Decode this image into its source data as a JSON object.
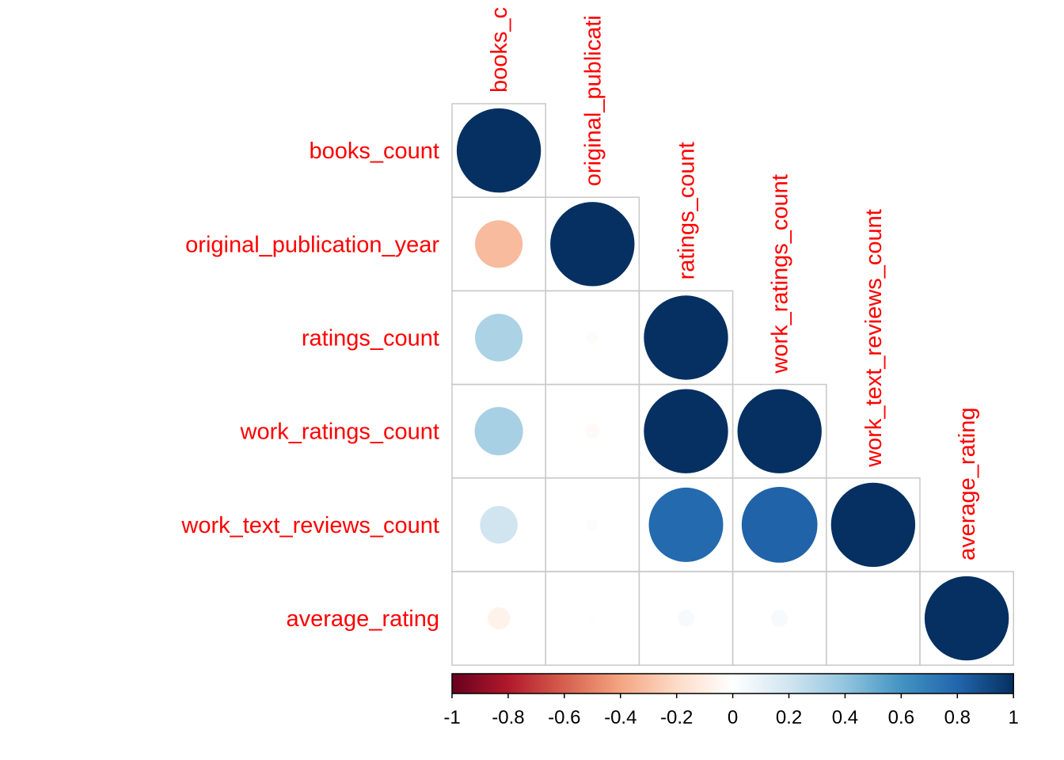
{
  "chart_data": {
    "type": "heatmap",
    "subtype": "correlation-circles-lower-triangle",
    "variables": [
      "books_count",
      "original_publication_year",
      "ratings_count",
      "work_ratings_count",
      "work_text_reviews_count",
      "average_rating"
    ],
    "column_labels": [
      "books_c",
      "original_publicati",
      "ratings_count",
      "work_ratings_count",
      "work_text_reviews_count",
      "average_rating"
    ],
    "matrix": [
      [
        1.0,
        null,
        null,
        null,
        null,
        null
      ],
      [
        -0.32,
        1.0,
        null,
        null,
        null,
        null
      ],
      [
        0.32,
        -0.02,
        1.0,
        null,
        null,
        null
      ],
      [
        0.33,
        -0.03,
        1.0,
        1.0,
        null,
        null
      ],
      [
        0.2,
        0.02,
        0.78,
        0.81,
        1.0,
        null
      ],
      [
        -0.07,
        0.01,
        0.04,
        0.04,
        0.0,
        1.0
      ]
    ],
    "color_scale": {
      "range": [
        -1,
        1
      ],
      "ticks": [
        "-1",
        "-0.8",
        "-0.6",
        "-0.4",
        "-0.2",
        "0",
        "0.2",
        "0.4",
        "0.6",
        "0.8",
        "1"
      ],
      "colors": [
        "#67001f",
        "#b2182b",
        "#d6604d",
        "#f4a582",
        "#fddbc7",
        "#ffffff",
        "#d1e5f0",
        "#92c5de",
        "#4393c3",
        "#2166ac",
        "#053061"
      ]
    },
    "label_color": "#ff0000",
    "grid_color": "#c8c8c8",
    "legend_position": "bottom"
  }
}
